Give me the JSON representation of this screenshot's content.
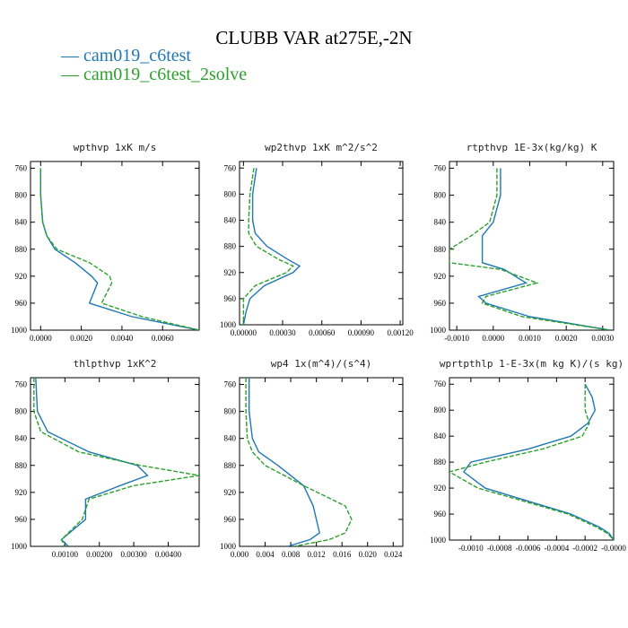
{
  "title": "CLUBB VAR at275E,-2N",
  "legend": [
    {
      "label": "— cam019_c6test",
      "color": "#1f77b4"
    },
    {
      "label": "— cam019_c6test_2solve",
      "color": "#2ca02c"
    }
  ],
  "colors": {
    "series1": "#1f77b4",
    "series2": "#2ca02c"
  },
  "chart_data": [
    {
      "type": "line",
      "title": "wpthvp  1xK m/s",
      "xlim": [
        -0.0005,
        0.0078
      ],
      "ylim": [
        1000,
        750
      ],
      "xticks": [
        0.0,
        0.002,
        0.004,
        0.006
      ],
      "xtick_labels": [
        "0.0000",
        "0.0020",
        "0.0040",
        "0.0060"
      ],
      "yticks": [
        760,
        800,
        840,
        880,
        920,
        960,
        1000
      ],
      "series": [
        {
          "name": "cam019_c6test",
          "y": [
            760,
            800,
            840,
            860,
            880,
            900,
            920,
            930,
            960,
            980,
            1000
          ],
          "x": [
            0.0,
            0.0,
            0.0001,
            0.0003,
            0.0007,
            0.0017,
            0.0025,
            0.0028,
            0.0024,
            0.0045,
            0.0078
          ]
        },
        {
          "name": "cam019_c6test_2solve",
          "y": [
            760,
            800,
            840,
            860,
            880,
            900,
            920,
            930,
            960,
            980,
            1000
          ],
          "x": [
            0.0,
            0.0,
            0.0001,
            0.0003,
            0.0008,
            0.0024,
            0.0034,
            0.0035,
            0.003,
            0.005,
            0.0078
          ]
        }
      ]
    },
    {
      "type": "line",
      "title": "wp2thvp  1xK m^2/s^2",
      "xlim": [
        -3e-05,
        0.00122
      ],
      "ylim": [
        1000,
        750
      ],
      "xticks": [
        0.0,
        0.0003,
        0.0006,
        0.0009,
        0.0012
      ],
      "xtick_labels": [
        "0.00000",
        "0.00030",
        "0.00060",
        "0.00090",
        "0.00120"
      ],
      "yticks": [
        760,
        800,
        840,
        880,
        920,
        960,
        1000
      ],
      "series": [
        {
          "name": "cam019_c6test",
          "y": [
            760,
            800,
            840,
            860,
            880,
            900,
            910,
            920,
            940,
            960,
            980,
            1000
          ],
          "x": [
            0.0001,
            7e-05,
            7e-05,
            9e-05,
            0.00018,
            0.00034,
            0.00043,
            0.00038,
            0.00016,
            5e-05,
            2e-05,
            0.0
          ]
        },
        {
          "name": "cam019_c6test_2solve",
          "y": [
            760,
            800,
            840,
            860,
            880,
            900,
            910,
            920,
            940,
            960,
            980,
            1000
          ],
          "x": [
            8e-05,
            5e-05,
            4e-05,
            4e-05,
            0.0001,
            0.00027,
            0.00038,
            0.00033,
            9e-05,
            0.0,
            0.0,
            0.0
          ]
        }
      ]
    },
    {
      "type": "line",
      "title": "rtpthvp  1E-3x(kg/kg) K",
      "xlim": [
        -0.0012,
        0.0033
      ],
      "ylim": [
        1000,
        750
      ],
      "xticks": [
        -0.001,
        0.0,
        0.001,
        0.002,
        0.003
      ],
      "xtick_labels": [
        "-0.0010",
        "0.0000",
        "0.0010",
        "0.0020",
        "0.0030"
      ],
      "yticks": [
        760,
        800,
        840,
        880,
        920,
        960,
        1000
      ],
      "series": [
        {
          "name": "cam019_c6test",
          "y": [
            760,
            800,
            840,
            860,
            880,
            900,
            910,
            930,
            950,
            960,
            980,
            1000
          ],
          "x": [
            0.0002,
            0.0002,
            0.0,
            -0.0003,
            -0.0003,
            -0.0003,
            0.0003,
            0.0009,
            -0.0004,
            -0.0002,
            0.001,
            0.0032
          ]
        },
        {
          "name": "cam019_c6test_2solve",
          "y": [
            760,
            800,
            840,
            860,
            880,
            900,
            910,
            930,
            950,
            960,
            980,
            1000
          ],
          "x": [
            0.0001,
            0.0001,
            -0.0001,
            -0.0006,
            -0.0012,
            -0.0012,
            0.0002,
            0.0012,
            -0.0002,
            -0.0003,
            0.0008,
            0.0032
          ]
        }
      ]
    },
    {
      "type": "line",
      "title": "thlpthvp  1xK^2",
      "xlim": [
        0.0,
        0.0049
      ],
      "ylim": [
        1000,
        750
      ],
      "xticks": [
        0.001,
        0.002,
        0.003,
        0.004
      ],
      "xtick_labels": [
        "0.00100",
        "0.00200",
        "0.00300",
        "0.00400"
      ],
      "yticks": [
        760,
        800,
        840,
        880,
        920,
        960,
        1000
      ],
      "series": [
        {
          "name": "cam019_c6test",
          "y": [
            750,
            800,
            830,
            860,
            880,
            895,
            910,
            930,
            960,
            990,
            1000
          ],
          "x": [
            0.00015,
            0.0002,
            0.0005,
            0.0017,
            0.0031,
            0.0034,
            0.0026,
            0.0016,
            0.0016,
            0.0009,
            0.0011
          ]
        },
        {
          "name": "cam019_c6test_2solve",
          "y": [
            750,
            800,
            830,
            860,
            880,
            895,
            910,
            930,
            960,
            990,
            1000
          ],
          "x": [
            0.0001,
            0.0001,
            0.0003,
            0.0014,
            0.0032,
            0.0049,
            0.003,
            0.0017,
            0.0015,
            0.0009,
            0.001
          ]
        }
      ]
    },
    {
      "type": "line",
      "title": "wp4  1x(m^4)/(s^4)",
      "xlim": [
        0.0,
        0.0255
      ],
      "ylim": [
        1000,
        750
      ],
      "xticks": [
        0.0,
        0.004,
        0.008,
        0.012,
        0.016,
        0.02,
        0.024
      ],
      "xtick_labels": [
        "0.000",
        "0.004",
        "0.008",
        "0.012",
        "0.016",
        "0.020",
        "0.024"
      ],
      "yticks": [
        760,
        800,
        840,
        880,
        920,
        960,
        1000
      ],
      "series": [
        {
          "name": "cam019_c6test",
          "y": [
            750,
            800,
            840,
            860,
            880,
            910,
            940,
            960,
            980,
            990,
            1000
          ],
          "x": [
            0.0015,
            0.0015,
            0.002,
            0.003,
            0.006,
            0.01,
            0.0115,
            0.012,
            0.0125,
            0.011,
            0.0075
          ]
        },
        {
          "name": "cam019_c6test_2solve",
          "y": [
            750,
            800,
            840,
            860,
            880,
            910,
            940,
            960,
            980,
            990,
            1000
          ],
          "x": [
            0.001,
            0.001,
            0.0012,
            0.002,
            0.004,
            0.01,
            0.0165,
            0.0175,
            0.0165,
            0.014,
            0.0085
          ]
        }
      ]
    },
    {
      "type": "line",
      "title": "wprtpthlp  1-E-3x(m kg K)/(s kg)",
      "xlim": [
        -0.00115,
        0.0
      ],
      "ylim": [
        1000,
        750
      ],
      "xticks": [
        -0.001,
        -0.0008,
        -0.0006,
        -0.0004,
        -0.0002,
        0.0
      ],
      "xtick_labels": [
        "-0.0010",
        "-0.0008",
        "-0.0006",
        "-0.0004",
        "-0.0002",
        "-0.0000"
      ],
      "yticks": [
        760,
        800,
        840,
        880,
        920,
        960,
        1000
      ],
      "series": [
        {
          "name": "cam019_c6test",
          "y": [
            760,
            780,
            800,
            820,
            840,
            860,
            880,
            895,
            920,
            940,
            960,
            980,
            990,
            1000
          ],
          "x": [
            -0.0002,
            -0.00015,
            -0.00013,
            -0.00018,
            -0.0003,
            -0.0006,
            -0.001,
            -0.00105,
            -0.0009,
            -0.0006,
            -0.0003,
            -0.0001,
            -3e-05,
            0.0
          ]
        },
        {
          "name": "cam019_c6test_2solve",
          "y": [
            760,
            780,
            800,
            820,
            840,
            860,
            880,
            895,
            920,
            940,
            960,
            980,
            990,
            1000
          ],
          "x": [
            -0.0002,
            -0.0002,
            -0.0002,
            -0.00017,
            -0.00022,
            -0.0005,
            -0.0009,
            -0.00115,
            -0.00095,
            -0.00063,
            -0.00032,
            -0.00012,
            -4e-05,
            0.0
          ]
        }
      ]
    }
  ]
}
